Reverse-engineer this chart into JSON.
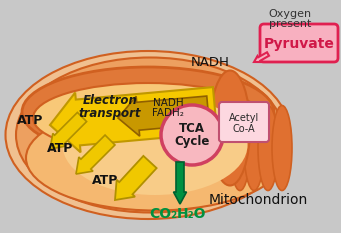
{
  "bg_color": "#c8c8c8",
  "mito_outer1_color": "#e8956a",
  "mito_outer2_color": "#f0a870",
  "mito_inner_color": "#f5c080",
  "mito_membrane_color": "#d06020",
  "cristae_color": "#d06820",
  "cristae_fill": "#e07030",
  "inner_matrix_color": "#f8d090",
  "tca_circle_color": "#f8b8c0",
  "tca_border_color": "#d04060",
  "acetyl_box_color": "#fdd8e0",
  "acetyl_border_color": "#c05070",
  "electron_arrow_color": "#f5c800",
  "electron_arrow_edge": "#c09800",
  "nadh_fadh_arrow_color": "#c89800",
  "nadh_fadh_arrow_edge": "#906000",
  "atp_arrow_color": "#f0c800",
  "atp_arrow_edge": "#b09000",
  "co2_arrow_color": "#009040",
  "pyruvate_box_color": "#f8b0c0",
  "pyruvate_border_color": "#e02050",
  "pyruvate_text_color": "#d01848",
  "labels": {
    "NADH": "NADH",
    "ET_line1": "Electron",
    "ET_line2": "transport",
    "NF_line1": "NADH",
    "NF_line2": "FADH₂",
    "TCA1": "TCA",
    "TCA2": "Cycle",
    "ACo1": "Acetyl",
    "ACo2": "Co-A",
    "ATP1": "ATP",
    "ATP2": "ATP",
    "ATP3": "ATP",
    "CO2": "CO₂",
    "H2O": "H₂O",
    "Mito": "Mitochondrion",
    "Oxy1": "Oxygen",
    "Oxy2": "present",
    "Pyru": "Pyruvate"
  }
}
